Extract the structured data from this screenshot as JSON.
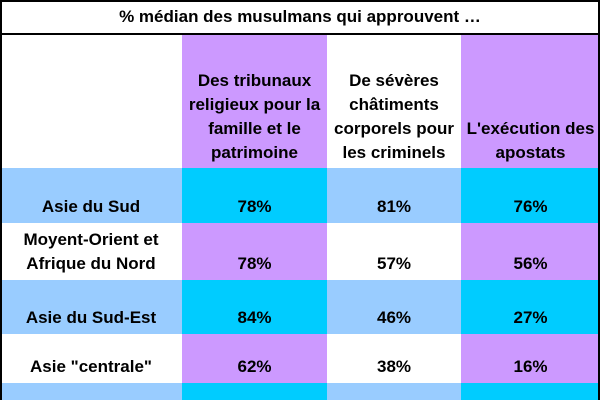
{
  "chart_data": {
    "type": "table",
    "title": "% médian des musulmans qui approuvent …",
    "columns": [
      "Des tribunaux religieux pour la famille et le patrimoine",
      "De sévères châtiments corporels pour les criminels",
      "L'exécution des apostats"
    ],
    "rows": [
      {
        "label": "Asie du Sud",
        "values": [
          "78%",
          "81%",
          "76%"
        ]
      },
      {
        "label": "Moyent-Orient et Afrique du Nord",
        "values": [
          "78%",
          "57%",
          "56%"
        ]
      },
      {
        "label": "Asie du Sud-Est",
        "values": [
          "84%",
          "46%",
          "27%"
        ]
      },
      {
        "label": "Asie \"centrale\"",
        "values": [
          "62%",
          "38%",
          "16%"
        ]
      }
    ],
    "colors": {
      "purple": "#cc99ff",
      "cyan": "#00ccff",
      "light_blue": "#99ccff",
      "white": "#ffffff"
    }
  }
}
